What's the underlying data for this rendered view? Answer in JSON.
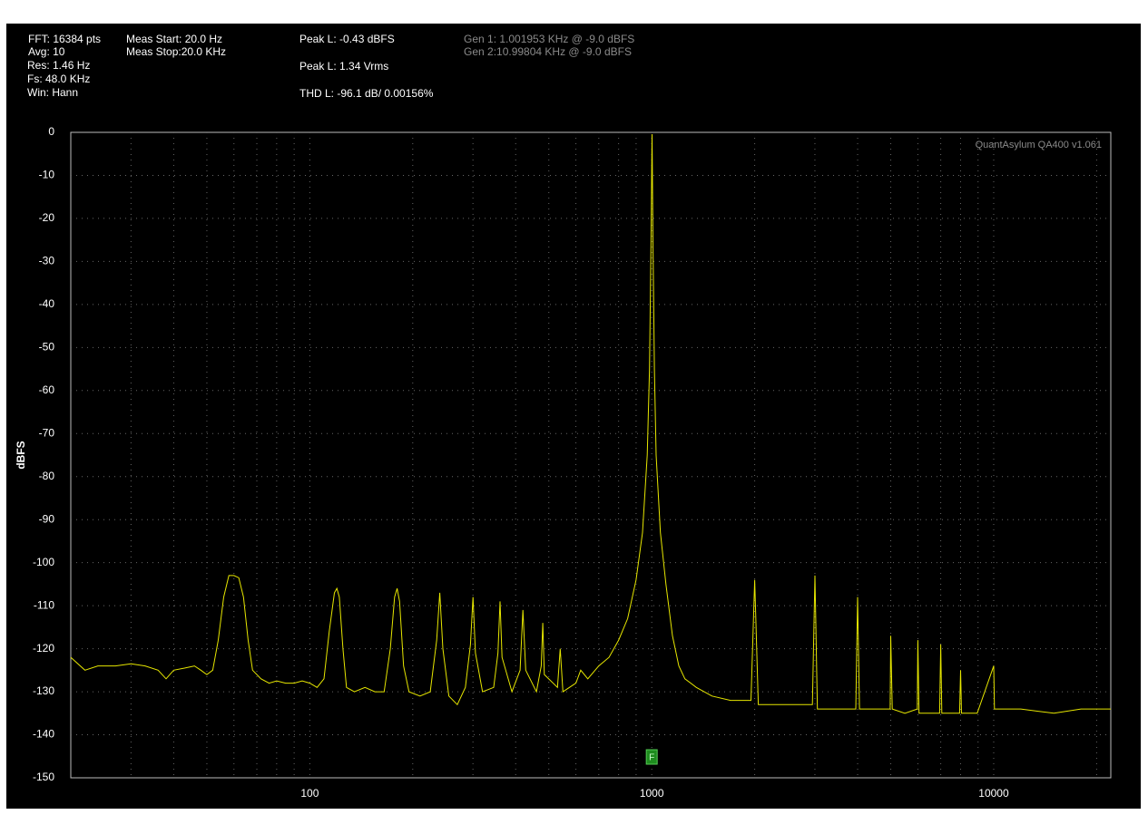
{
  "chart_data": {
    "type": "line",
    "header": [
      "FFT: 16384 pts",
      "Avg: 10",
      "Res: 1.46 Hz",
      "Fs: 48.0 KHz",
      "Win: Hann",
      "Meas Start: 20.0 Hz",
      "Meas Stop:20.0 KHz",
      "Peak L: -0.43 dBFS",
      "Peak L: 1.34 Vrms",
      "THD L: -96.1 dB/ 0.00156%",
      "Gen 1: 1.001953 KHz @ -9.0  dBFS",
      "Gen 2:10.99804 KHz @ -9.0  dBFS"
    ],
    "watermark": "QuantAsylum QA400 v1.061",
    "y_label": "dBFS",
    "x_scale": "log",
    "xlim": [
      20,
      22000
    ],
    "xticks": [
      100,
      1000,
      10000
    ],
    "x_minor_grid": [
      30,
      40,
      50,
      60,
      70,
      80,
      90,
      200,
      300,
      400,
      500,
      600,
      700,
      800,
      900,
      2000,
      3000,
      4000,
      5000,
      6000,
      7000,
      8000,
      9000,
      20000
    ],
    "ylim": [
      -150,
      0
    ],
    "yticks": [
      0,
      -10,
      -20,
      -30,
      -40,
      -50,
      -60,
      -70,
      -80,
      -90,
      -100,
      -110,
      -120,
      -130,
      -140,
      -150
    ],
    "grid": true,
    "color": "#e6e600",
    "marker": {
      "label": "F",
      "x": 1000
    },
    "x": [
      20,
      22,
      24,
      27,
      30,
      33,
      36,
      38,
      40,
      43,
      46,
      48,
      50,
      52,
      54,
      56,
      58,
      60,
      62,
      64,
      66,
      68,
      72,
      76,
      80,
      85,
      90,
      95,
      100,
      105,
      110,
      114,
      118,
      120,
      122,
      125,
      128,
      135,
      145,
      155,
      165,
      172,
      177,
      180,
      183,
      188,
      195,
      210,
      225,
      235,
      240,
      245,
      255,
      270,
      285,
      295,
      300,
      305,
      320,
      345,
      355,
      360,
      365,
      390,
      412,
      420,
      428,
      460,
      475,
      480,
      485,
      530,
      540,
      550,
      600,
      620,
      650,
      700,
      750,
      800,
      850,
      900,
      940,
      970,
      985,
      995,
      1002,
      1008,
      1018,
      1030,
      1060,
      1100,
      1150,
      1200,
      1250,
      1350,
      1500,
      1700,
      1950,
      2000,
      2050,
      2500,
      2950,
      3000,
      3050,
      3500,
      3950,
      4000,
      4050,
      4500,
      4980,
      5000,
      5050,
      5500,
      5980,
      6000,
      6050,
      6950,
      7000,
      7050,
      7950,
      8000,
      8050,
      8950,
      10000,
      10050,
      12000,
      15000,
      18000,
      22000
    ],
    "values": [
      -122,
      -125,
      -124,
      -124,
      -123.5,
      -124,
      -125,
      -127,
      -125,
      -124.5,
      -124,
      -125,
      -126,
      -125,
      -118,
      -108,
      -103,
      -103,
      -103.5,
      -108,
      -118,
      -125,
      -127,
      -128,
      -127.5,
      -128,
      -128,
      -127.5,
      -128,
      -129,
      -127,
      -116,
      -107,
      -106,
      -108,
      -120,
      -129,
      -130,
      -129,
      -130,
      -130,
      -120,
      -108,
      -106,
      -109,
      -124,
      -130,
      -131,
      -130,
      -118,
      -107,
      -120,
      -131,
      -133,
      -129,
      -119,
      -108,
      -121,
      -130,
      -129,
      -121,
      -109,
      -122,
      -130,
      -125,
      -111,
      -125,
      -130,
      -124,
      -114,
      -126,
      -129,
      -120,
      -130,
      -128,
      -125,
      -127,
      -124,
      -122,
      -118,
      -113,
      -104,
      -93,
      -75,
      -55,
      -25,
      -0.43,
      -25,
      -55,
      -75,
      -93,
      -105,
      -117,
      -124,
      -127,
      -129,
      -131,
      -132,
      -132,
      -104,
      -133,
      -133,
      -133,
      -103,
      -134,
      -134,
      -134,
      -108,
      -134,
      -134,
      -134,
      -117,
      -134,
      -135,
      -134,
      -118,
      -135,
      -135,
      -119,
      -135,
      -135,
      -125,
      -135,
      -135,
      -124,
      -134,
      -134,
      -135,
      -134,
      -134
    ]
  }
}
